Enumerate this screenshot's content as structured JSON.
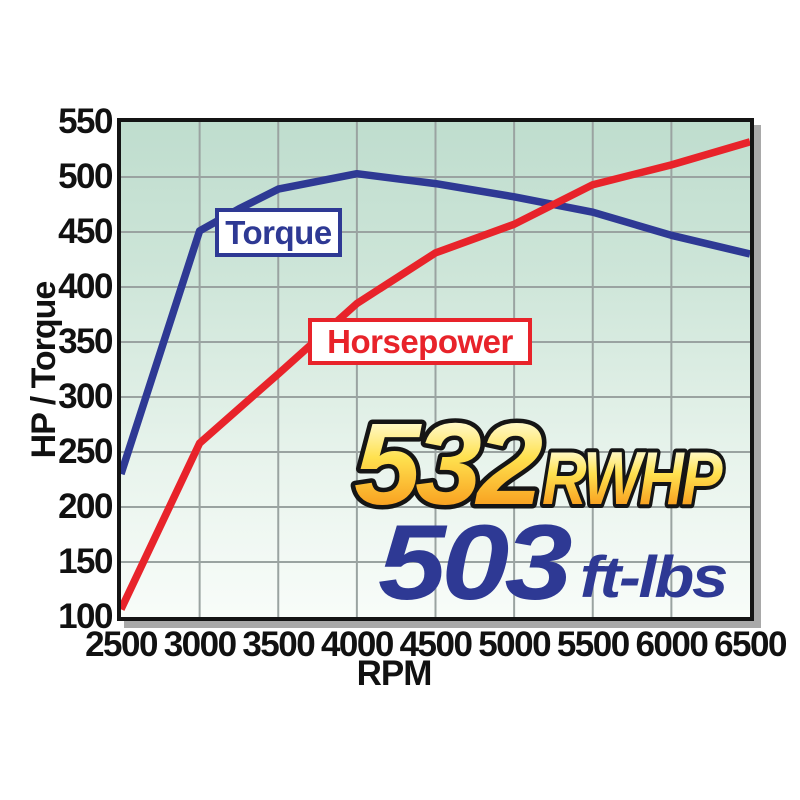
{
  "axis": {
    "y_label": "HP / Torque",
    "x_label": "RPM"
  },
  "callouts": {
    "torque_label": "Torque",
    "horsepower_label": "Horsepower"
  },
  "headline": {
    "hp_value": "532",
    "hp_unit": "RWHP",
    "torque_value": "503",
    "torque_unit": "ft-lbs"
  },
  "colors": {
    "torque_line": "#2e3994",
    "horsepower_line": "#e8232a",
    "gridline": "#9aa3a1",
    "plot_border": "#141414",
    "shadow": "#a9a9a9",
    "tick_text": "#111111",
    "gold_gradient_top": "#fffef0",
    "gold_gradient_mid": "#ffe14f",
    "gold_gradient_bottom": "#f6881f",
    "headline_blue": "#2e3994",
    "plot_bg_top": "#bfddce",
    "plot_bg_bottom": "#f8fcf9"
  },
  "chart_data": {
    "type": "line",
    "title": "",
    "xlabel": "RPM",
    "ylabel": "HP / Torque",
    "xlim": [
      2500,
      6500
    ],
    "ylim": [
      100,
      550
    ],
    "x_ticks": [
      2500,
      3000,
      3500,
      4000,
      4500,
      5000,
      5500,
      6000,
      6500
    ],
    "y_ticks": [
      100,
      150,
      200,
      250,
      300,
      350,
      400,
      450,
      500,
      550
    ],
    "grid": true,
    "legend_position": "inline-callouts",
    "annotations": [
      "532 RWHP",
      "503 ft-lbs"
    ],
    "series": [
      {
        "name": "Torque",
        "color": "#2e3994",
        "peak": {
          "rpm": 4000,
          "value": 503
        },
        "points": [
          [
            2500,
            230
          ],
          [
            3000,
            451
          ],
          [
            3250,
            471
          ],
          [
            3500,
            489
          ],
          [
            4000,
            503
          ],
          [
            4500,
            494
          ],
          [
            5000,
            482
          ],
          [
            5500,
            468
          ],
          [
            6000,
            447
          ],
          [
            6500,
            430
          ]
        ]
      },
      {
        "name": "Horsepower",
        "color": "#e8232a",
        "peak": {
          "rpm": 6500,
          "value": 532
        },
        "points": [
          [
            2500,
            107
          ],
          [
            3000,
            258
          ],
          [
            3500,
            321
          ],
          [
            4000,
            385
          ],
          [
            4500,
            431
          ],
          [
            5000,
            457
          ],
          [
            5500,
            493
          ],
          [
            6000,
            511
          ],
          [
            6500,
            532
          ]
        ]
      }
    ]
  }
}
